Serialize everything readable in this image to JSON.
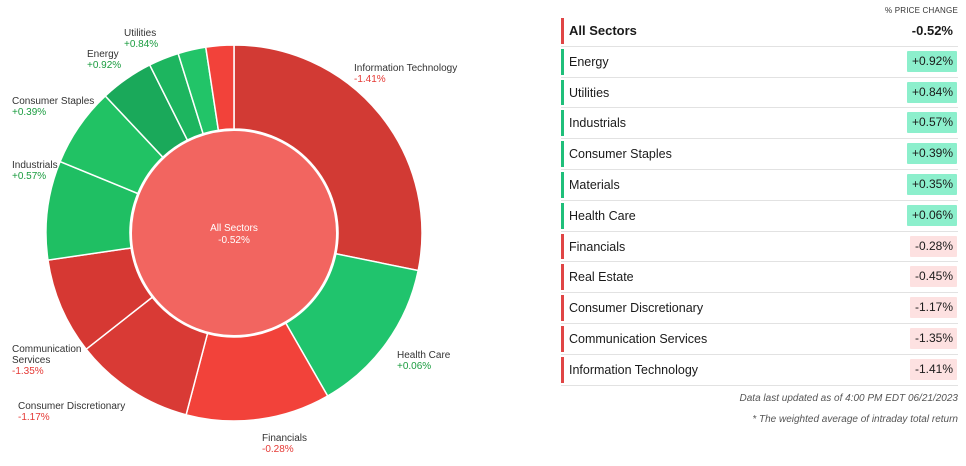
{
  "chart_data": {
    "type": "pie",
    "center": {
      "label": "All Sectors",
      "value": "-0.52%"
    },
    "slices": [
      {
        "name": "Information Technology",
        "change": "-1.41%",
        "weight": 28.2,
        "color": "#d23a34"
      },
      {
        "name": "Health Care",
        "change": "+0.06%",
        "weight": 13.5,
        "color": "#20c46d"
      },
      {
        "name": "Financials",
        "change": "-0.28%",
        "weight": 12.4,
        "color": "#f2423a"
      },
      {
        "name": "Consumer Discretionary",
        "change": "-1.17%",
        "weight": 10.3,
        "color": "#d93a35"
      },
      {
        "name": "Communication Services",
        "change": "-1.35%",
        "weight": 8.3,
        "color": "#d63833"
      },
      {
        "name": "Industrials",
        "change": "+0.57%",
        "weight": 8.5,
        "color": "#1fbf63"
      },
      {
        "name": "Consumer Staples",
        "change": "+0.39%",
        "weight": 6.8,
        "color": "#21c264"
      },
      {
        "name": "Energy",
        "change": "+0.92%",
        "weight": 4.6,
        "color": "#1aa95a"
      },
      {
        "name": "Utilities",
        "change": "+0.84%",
        "weight": 2.6,
        "color": "#1db55f"
      },
      {
        "name": "Materials",
        "change": "+0.35%",
        "weight": 2.4,
        "color": "#22c468"
      },
      {
        "name": "Real Estate",
        "change": "-0.45%",
        "weight": 2.4,
        "color": "#f2423a"
      }
    ],
    "center_color": "#f26560"
  },
  "chart_labels": [
    {
      "name": "Information Technology",
      "value": "-1.41%"
    },
    {
      "name": "Health Care",
      "value": "+0.06%"
    },
    {
      "name": "Financials",
      "value": "-0.28%"
    },
    {
      "name": "Consumer Discretionary",
      "value": "-1.17%"
    },
    {
      "name": "Communication",
      "name2": "Services",
      "value": "-1.35%"
    },
    {
      "name": "Industrials",
      "value": "+0.57%"
    },
    {
      "name": "Consumer Staples",
      "value": "+0.39%"
    },
    {
      "name": "Energy",
      "value": "+0.92%"
    },
    {
      "name": "Utilities",
      "value": "+0.84%"
    }
  ],
  "table": {
    "header": "% PRICE CHANGE",
    "rows": [
      {
        "name": "All Sectors",
        "value": "-0.52%",
        "dir": "down",
        "total": true
      },
      {
        "name": "Energy",
        "value": "+0.92%",
        "dir": "up"
      },
      {
        "name": "Utilities",
        "value": "+0.84%",
        "dir": "up"
      },
      {
        "name": "Industrials",
        "value": "+0.57%",
        "dir": "up"
      },
      {
        "name": "Consumer Staples",
        "value": "+0.39%",
        "dir": "up"
      },
      {
        "name": "Materials",
        "value": "+0.35%",
        "dir": "up"
      },
      {
        "name": "Health Care",
        "value": "+0.06%",
        "dir": "up"
      },
      {
        "name": "Financials",
        "value": "-0.28%",
        "dir": "down"
      },
      {
        "name": "Real Estate",
        "value": "-0.45%",
        "dir": "down"
      },
      {
        "name": "Consumer Discretionary",
        "value": "-1.17%",
        "dir": "down"
      },
      {
        "name": "Communication Services",
        "value": "-1.35%",
        "dir": "down"
      },
      {
        "name": "Information Technology",
        "value": "-1.41%",
        "dir": "down"
      }
    ],
    "footnote1": "Data last updated as of 4:00 PM EDT 06/21/2023",
    "footnote2": "* The weighted average of intraday total return"
  },
  "colors": {
    "up_bar": "#1fbf7a",
    "down_bar": "#e04545"
  }
}
